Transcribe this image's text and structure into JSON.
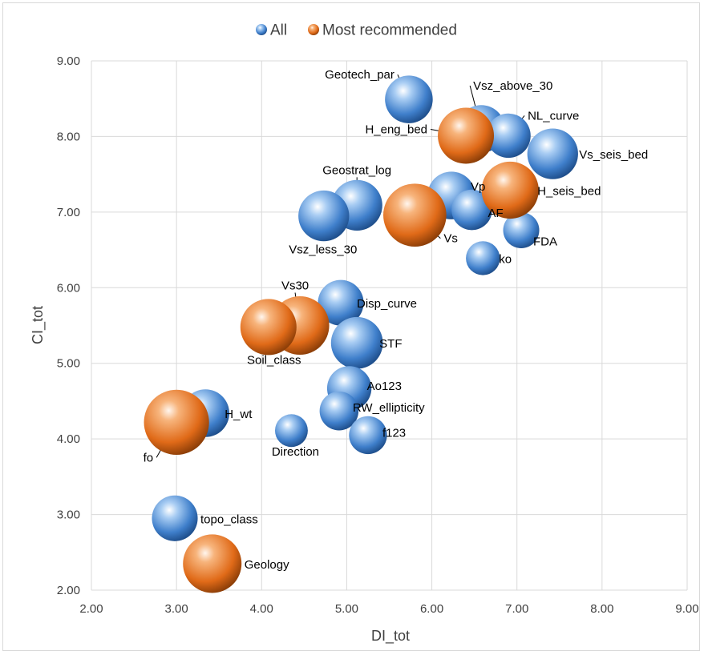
{
  "chart_data": {
    "type": "scatter",
    "xlabel": "DI_tot",
    "ylabel": "CI_tot",
    "xlim": [
      2.0,
      9.0
    ],
    "ylim": [
      2.0,
      9.0
    ],
    "x_ticks": [
      "2.00",
      "3.00",
      "4.00",
      "5.00",
      "6.00",
      "7.00",
      "8.00",
      "9.00"
    ],
    "y_ticks": [
      "2.00",
      "3.00",
      "4.00",
      "5.00",
      "6.00",
      "7.00",
      "8.00",
      "9.00"
    ],
    "grid": true,
    "legend_position": "top",
    "series": [
      {
        "name": "All",
        "color": "#4a8fd6",
        "points": [
          {
            "label": "Geotech_par",
            "x": 5.73,
            "y": 8.49,
            "size": 2.5
          },
          {
            "label": "Vsz_above_30",
            "x": 6.58,
            "y": 8.1,
            "size": 2.5
          },
          {
            "label": "NL_curve",
            "x": 6.9,
            "y": 8.01,
            "size": 2.0
          },
          {
            "label": "Vs_seis_bed",
            "x": 7.42,
            "y": 7.77,
            "size": 3.0
          },
          {
            "label": "Geostrat_log",
            "x": 5.12,
            "y": 7.09,
            "size": 3.0
          },
          {
            "label": "Vp",
            "x": 6.23,
            "y": 7.22,
            "size": 2.5
          },
          {
            "label": "AF",
            "x": 6.47,
            "y": 7.03,
            "size": 1.5
          },
          {
            "label": "Vsz_less_30",
            "x": 4.73,
            "y": 6.95,
            "size": 3.0
          },
          {
            "label": "FDA",
            "x": 7.05,
            "y": 6.76,
            "size": 1.0
          },
          {
            "label": "ko",
            "x": 6.6,
            "y": 6.39,
            "size": 0.8
          },
          {
            "label": "Disp_curve",
            "x": 4.93,
            "y": 5.8,
            "size": 2.2
          },
          {
            "label": "STF",
            "x": 5.12,
            "y": 5.27,
            "size": 3.2
          },
          {
            "label": "Ao123",
            "x": 5.03,
            "y": 4.67,
            "size": 2.0
          },
          {
            "label": "RW_ellipticity",
            "x": 4.91,
            "y": 4.37,
            "size": 1.3
          },
          {
            "label": "H_wt",
            "x": 3.34,
            "y": 4.34,
            "size": 2.5
          },
          {
            "label": "Direction",
            "x": 4.35,
            "y": 4.11,
            "size": 0.7
          },
          {
            "label": "f123",
            "x": 5.25,
            "y": 4.05,
            "size": 1.2
          },
          {
            "label": "topo_class",
            "x": 2.98,
            "y": 2.95,
            "size": 2.2
          }
        ]
      },
      {
        "name": "Most recommended",
        "color": "#e46f1f",
        "points": [
          {
            "label": "H_eng_bed",
            "x": 6.4,
            "y": 8.01,
            "size": 4.0
          },
          {
            "label": "H_seis_bed",
            "x": 6.92,
            "y": 7.29,
            "size": 4.2
          },
          {
            "label": "Vs",
            "x": 5.8,
            "y": 6.96,
            "size": 5.5
          },
          {
            "label": "Vs30",
            "x": 4.45,
            "y": 5.5,
            "size": 4.5
          },
          {
            "label": "Soil_class",
            "x": 4.08,
            "y": 5.48,
            "size": 4.0
          },
          {
            "label": "fo",
            "x": 3.0,
            "y": 4.22,
            "size": 6.0
          },
          {
            "label": "Geology",
            "x": 3.42,
            "y": 2.35,
            "size": 4.5
          }
        ]
      }
    ]
  }
}
